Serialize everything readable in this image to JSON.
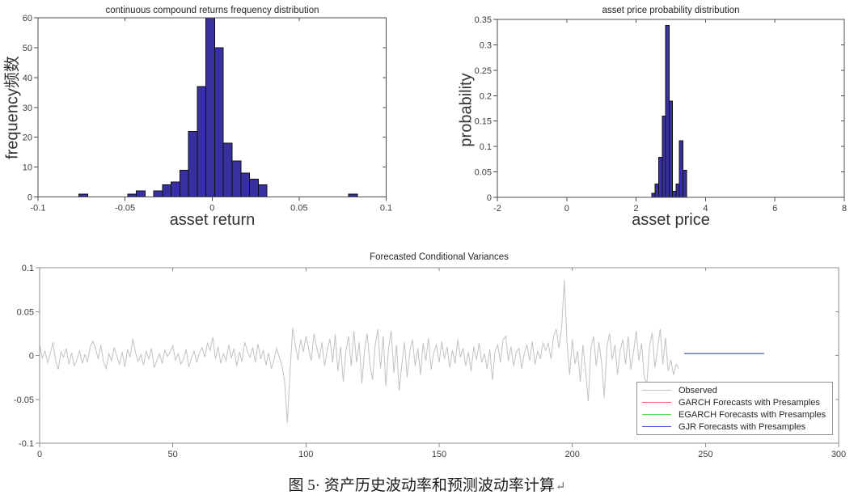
{
  "figure": {
    "caption": {
      "text": "图 5· 资产历史波动率和预测波动率计算",
      "return_mark": "↵"
    }
  },
  "chart_data": [
    {
      "id": "returns",
      "type": "bar",
      "title": "continuous compound returns frequency distribution",
      "xlabel": "asset return",
      "ylabel": "frequency频数",
      "xlim": [
        -0.1,
        0.1
      ],
      "ylim": [
        0,
        60
      ],
      "xticks": [
        -0.1,
        -0.05,
        0,
        0.05,
        0.1
      ],
      "xtick_labels": [
        "-0.1",
        "-0.05",
        "0",
        "0.05",
        "0.1"
      ],
      "yticks": [
        0,
        10,
        20,
        30,
        40,
        50,
        60
      ],
      "ytick_labels": [
        "0",
        "10",
        "20",
        "30",
        "40",
        "50",
        "60"
      ],
      "grid": false,
      "bin_width": 0.005,
      "bar_color": "#38309f",
      "bar_edge": "#111111",
      "bars": [
        {
          "x": -0.074,
          "h": 1
        },
        {
          "x": -0.046,
          "h": 1
        },
        {
          "x": -0.041,
          "h": 2
        },
        {
          "x": -0.031,
          "h": 2
        },
        {
          "x": -0.026,
          "h": 4
        },
        {
          "x": -0.021,
          "h": 5
        },
        {
          "x": -0.016,
          "h": 9
        },
        {
          "x": -0.011,
          "h": 22
        },
        {
          "x": -0.006,
          "h": 37
        },
        {
          "x": -0.001,
          "h": 60
        },
        {
          "x": 0.004,
          "h": 50
        },
        {
          "x": 0.009,
          "h": 18
        },
        {
          "x": 0.014,
          "h": 12
        },
        {
          "x": 0.019,
          "h": 8
        },
        {
          "x": 0.024,
          "h": 6
        },
        {
          "x": 0.029,
          "h": 4
        },
        {
          "x": 0.081,
          "h": 1
        }
      ]
    },
    {
      "id": "price",
      "type": "bar",
      "title": "asset price probability distribution",
      "xlabel": "asset price",
      "ylabel": "probability",
      "xlim": [
        -2,
        8
      ],
      "ylim": [
        0,
        0.35
      ],
      "xticks": [
        -2,
        0,
        2,
        4,
        6,
        8
      ],
      "xtick_labels": [
        "-2",
        "0",
        "2",
        "4",
        "6",
        "8"
      ],
      "yticks": [
        0,
        0.05,
        0.1,
        0.15,
        0.2,
        0.25,
        0.3,
        0.35
      ],
      "ytick_labels": [
        "0",
        "0.05",
        "0.1",
        "0.15",
        "0.2",
        "0.25",
        "0.3",
        "0.35"
      ],
      "grid": false,
      "bin_width": 0.1,
      "bar_color": "#38309f",
      "bar_edge": "#111111",
      "bars": [
        {
          "x": 2.5,
          "h": 0.008
        },
        {
          "x": 2.6,
          "h": 0.026
        },
        {
          "x": 2.7,
          "h": 0.079
        },
        {
          "x": 2.8,
          "h": 0.16
        },
        {
          "x": 2.9,
          "h": 0.338
        },
        {
          "x": 3.0,
          "h": 0.189
        },
        {
          "x": 3.1,
          "h": 0.012
        },
        {
          "x": 3.2,
          "h": 0.026
        },
        {
          "x": 3.3,
          "h": 0.111
        },
        {
          "x": 3.4,
          "h": 0.053
        }
      ]
    },
    {
      "id": "variance",
      "type": "line",
      "title": "Forecasted Conditional Variances",
      "xlabel": "",
      "ylabel": "",
      "xlim": [
        0,
        300
      ],
      "ylim": [
        -0.1,
        0.1
      ],
      "xticks": [
        0,
        50,
        100,
        150,
        200,
        250,
        300
      ],
      "xtick_labels": [
        "0",
        "50",
        "100",
        "150",
        "200",
        "250",
        "300"
      ],
      "yticks": [
        -0.1,
        -0.05,
        0,
        0.05,
        0.1
      ],
      "ytick_labels": [
        "-0.1",
        "-0.05",
        "0",
        "0.05",
        "0.1"
      ],
      "grid": false,
      "legend_position": "bottom-right",
      "series": [
        {
          "name": "Observed",
          "color": "#c2c2c2",
          "x_start": 0,
          "x_step": 1,
          "values": [
            0.012,
            -0.003,
            0.005,
            -0.008,
            0.002,
            0.015,
            -0.006,
            -0.016,
            0.004,
            -0.002,
            0.008,
            -0.01,
            0.003,
            -0.012,
            -0.005,
            0.006,
            -0.009,
            0.001,
            -0.007,
            0.01,
            0.016,
            0.008,
            -0.004,
            0.012,
            -0.008,
            -0.015,
            0.002,
            -0.006,
            0.009,
            -0.001,
            -0.01,
            0.004,
            -0.013,
            0.007,
            -0.002,
            0.019,
            0.003,
            -0.007,
            0.001,
            -0.011,
            0.005,
            -0.004,
            0.008,
            -0.014,
            -0.006,
            0.002,
            -0.009,
            0.006,
            -0.001,
            0.004,
            0.011,
            -0.005,
            0.002,
            -0.01,
            -0.004,
            0.007,
            -0.013,
            -0.003,
            0.005,
            -0.008,
            0.003,
            0.009,
            -0.002,
            0.014,
            0.006,
            0.021,
            -0.004,
            0.01,
            -0.009,
            0.002,
            -0.006,
            0.012,
            -0.003,
            0.008,
            -0.012,
            0.004,
            -0.007,
            0.015,
            0.005,
            -0.002,
            0.009,
            -0.008,
            0.013,
            -0.004,
            0.006,
            -0.011,
            0.003,
            -0.015,
            -0.005,
            0.008,
            -0.002,
            -0.012,
            -0.03,
            -0.077,
            -0.02,
            0.031,
            0.012,
            -0.005,
            0.018,
            0.004,
            0.022,
            0.008,
            -0.006,
            0.025,
            0.01,
            -0.004,
            0.015,
            -0.012,
            0.006,
            0.019,
            -0.008,
            0.024,
            -0.018,
            0.01,
            -0.03,
            0.005,
            0.022,
            -0.012,
            0.028,
            -0.008,
            0.015,
            -0.032,
            0.006,
            0.025,
            -0.01,
            -0.028,
            0.012,
            0.03,
            -0.015,
            0.022,
            -0.035,
            0.008,
            0.028,
            -0.02,
            0.012,
            -0.04,
            -0.01,
            0.015,
            -0.025,
            0.005,
            0.018,
            -0.012,
            0.008,
            -0.022,
            0.014,
            -0.006,
            0.02,
            -0.016,
            0.004,
            0.012,
            -0.008,
            0.016,
            -0.004,
            0.01,
            -0.014,
            0.006,
            -0.009,
            0.018,
            -0.002,
            0.008,
            -0.012,
            0.004,
            -0.018,
            0.01,
            -0.005,
            0.014,
            -0.008,
            0.002,
            -0.015,
            0.007,
            -0.028,
            0.005,
            0.012,
            -0.008,
            0.018,
            0.022,
            -0.006,
            0.01,
            -0.012,
            0.004,
            0.008,
            -0.015,
            0.003,
            0.012,
            -0.006,
            0.016,
            -0.01,
            0.005,
            -0.004,
            0.014,
            0.006,
            0.014,
            -0.004,
            0.022,
            0.03,
            0.008,
            0.032,
            0.086,
            0.015,
            -0.022,
            0.018,
            -0.01,
            0.005,
            -0.03,
            0.012,
            -0.018,
            -0.052,
            0.008,
            0.022,
            -0.012,
            0.015,
            -0.008,
            -0.048,
            0.01,
            0.025,
            -0.005,
            0.012,
            -0.022,
            0.006,
            0.018,
            -0.01,
            0.022,
            -0.016,
            0.004,
            0.028,
            -0.006,
            0.014,
            -0.025,
            -0.032,
            0.01,
            0.026,
            -0.014,
            0.008,
            0.03,
            -0.01,
            0.02,
            -0.018,
            -0.005,
            -0.022,
            -0.01,
            -0.015
          ]
        },
        {
          "name": "GARCH Forecasts with Presamples",
          "color": "#f26b6b",
          "x_start": 242,
          "x_step": 30,
          "values": [
            0.002,
            0.002
          ]
        },
        {
          "name": "EGARCH Forecasts with Presamples",
          "color": "#4de84d",
          "x_start": 242,
          "x_step": 30,
          "values": [
            0.002,
            0.002
          ]
        },
        {
          "name": "GJR Forecasts with Presamples",
          "color": "#4a4ae0",
          "x_start": 242,
          "x_step": 30,
          "values": [
            0.0022,
            0.0022
          ]
        }
      ],
      "legend": [
        {
          "label": "Observed",
          "color": "#c2c2c2"
        },
        {
          "label": "GARCH Forecasts with Presamples",
          "color": "#f26b6b"
        },
        {
          "label": "EGARCH Forecasts with Presamples",
          "color": "#4de84d"
        },
        {
          "label": "GJR Forecasts with Presamples",
          "color": "#4a4ae0"
        }
      ]
    }
  ]
}
